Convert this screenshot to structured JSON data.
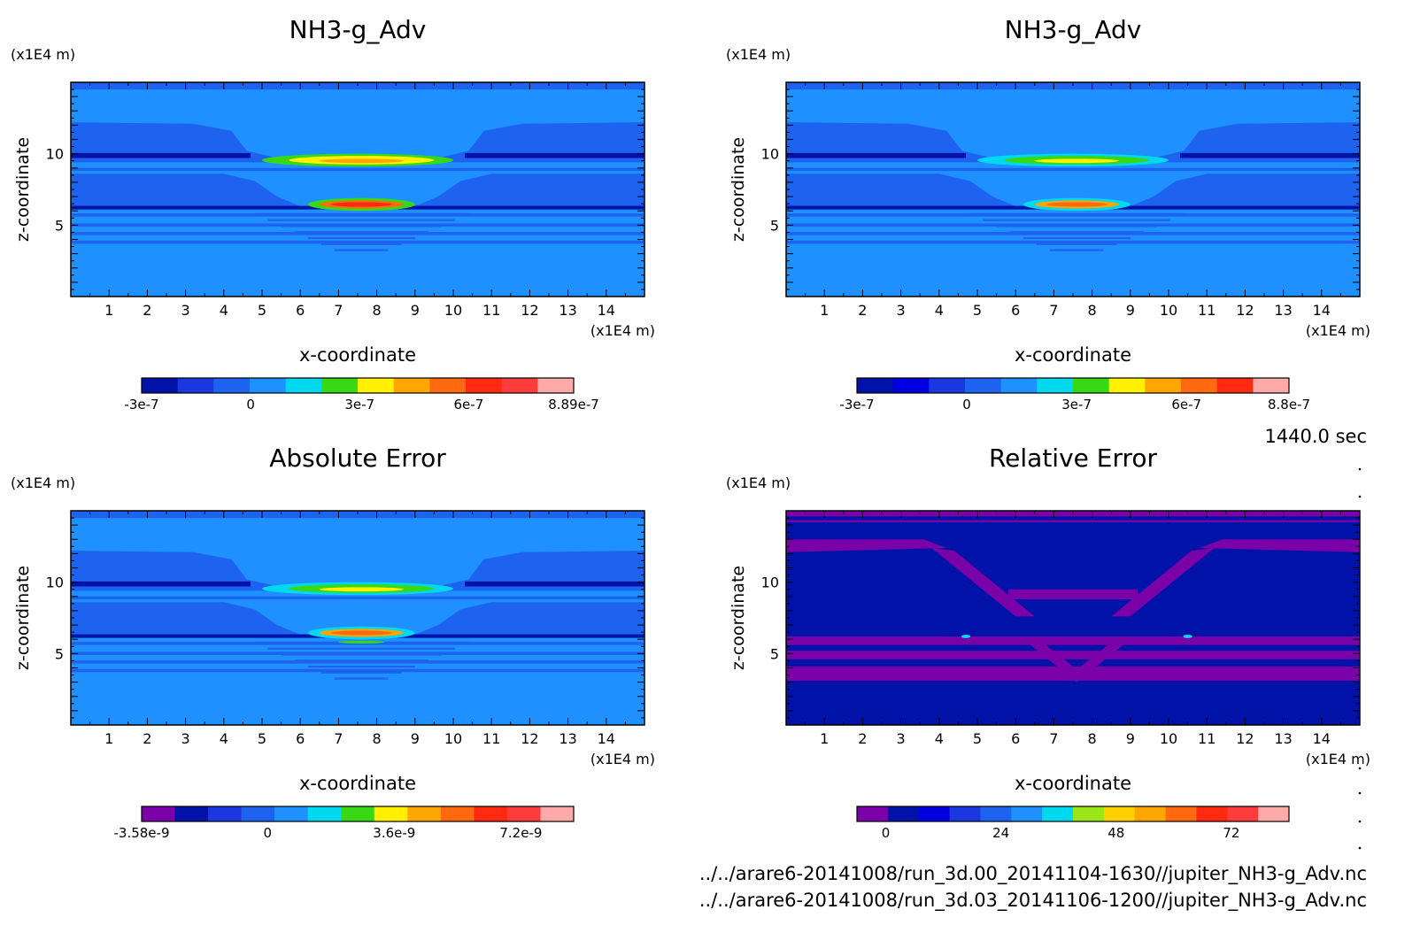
{
  "time_label": "1440.0 sec",
  "files": [
    "../../arare6-20141008/run_3d.00_20141104-1630//jupiter_NH3-g_Adv.nc",
    "../../arare6-20141008/run_3d.03_20141106-1200//jupiter_NH3-g_Adv.nc"
  ],
  "chart_data": [
    {
      "type": "heatmap",
      "title": "NH3-g_Adv",
      "xlabel": "x-coordinate",
      "ylabel": "z-coordinate",
      "x_unit": "(x1E4 m)",
      "y_unit": "(x1E4 m)",
      "xlim": [
        0,
        15
      ],
      "ylim": [
        0,
        15
      ],
      "x_ticks": [
        1,
        2,
        3,
        4,
        5,
        6,
        7,
        8,
        9,
        10,
        11,
        12,
        13,
        14
      ],
      "y_ticks": [
        5,
        10
      ],
      "variant": "field",
      "colorbar": {
        "colors": [
          "#0012a8",
          "#1b38e0",
          "#1e63f0",
          "#1e90ff",
          "#00d8f0",
          "#39d814",
          "#fff000",
          "#ffa500",
          "#ff6a10",
          "#ff2a10",
          "#ff3c3c",
          "#ffaaaa"
        ],
        "range": [
          -3e-07,
          8.89e-07
        ],
        "tick_labels": [
          {
            "label": "-3e-7",
            "value": -3e-07
          },
          {
            "label": "0",
            "value": 0
          },
          {
            "label": "3e-7",
            "value": 3e-07
          },
          {
            "label": "6e-7",
            "value": 6e-07
          },
          {
            "label": "8.89e-7",
            "value": 8.89e-07
          }
        ]
      }
    },
    {
      "type": "heatmap",
      "title": "NH3-g_Adv",
      "xlabel": "x-coordinate",
      "ylabel": "z-coordinate",
      "x_unit": "(x1E4 m)",
      "y_unit": "(x1E4 m)",
      "xlim": [
        0,
        15
      ],
      "ylim": [
        0,
        15
      ],
      "x_ticks": [
        1,
        2,
        3,
        4,
        5,
        6,
        7,
        8,
        9,
        10,
        11,
        12,
        13,
        14
      ],
      "y_ticks": [
        5,
        10
      ],
      "variant": "field",
      "colorbar": {
        "colors": [
          "#0012a8",
          "#0000e0",
          "#1b38e0",
          "#1e63f0",
          "#1e90ff",
          "#00d8f0",
          "#39d814",
          "#fff000",
          "#ffa500",
          "#ff6a10",
          "#ff2a10",
          "#ffaaaa"
        ],
        "range": [
          -3e-07,
          8.8e-07
        ],
        "tick_labels": [
          {
            "label": "-3e-7",
            "value": -3e-07
          },
          {
            "label": "0",
            "value": 0
          },
          {
            "label": "3e-7",
            "value": 3e-07
          },
          {
            "label": "6e-7",
            "value": 6e-07
          },
          {
            "label": "8.8e-7",
            "value": 8.8e-07
          }
        ]
      }
    },
    {
      "type": "heatmap",
      "title": "Absolute Error",
      "xlabel": "x-coordinate",
      "ylabel": "z-coordinate",
      "x_unit": "(x1E4 m)",
      "y_unit": "(x1E4 m)",
      "xlim": [
        0,
        15
      ],
      "ylim": [
        0,
        15
      ],
      "x_ticks": [
        1,
        2,
        3,
        4,
        5,
        6,
        7,
        8,
        9,
        10,
        11,
        12,
        13,
        14
      ],
      "y_ticks": [
        5,
        10
      ],
      "variant": "field",
      "colorbar": {
        "colors": [
          "#7a00a8",
          "#0012a8",
          "#1b38e0",
          "#1e63f0",
          "#1e90ff",
          "#00d8f0",
          "#39d814",
          "#fff000",
          "#ffa500",
          "#ff6a10",
          "#ff2a10",
          "#ff3c3c",
          "#ffaaaa"
        ],
        "range": [
          -3.58e-09,
          8.7e-09
        ],
        "tick_labels": [
          {
            "label": "-3.58e-9",
            "value": -3.58e-09
          },
          {
            "label": "0",
            "value": 0
          },
          {
            "label": "3.6e-9",
            "value": 3.6e-09
          },
          {
            "label": "7.2e-9",
            "value": 7.2e-09
          }
        ]
      }
    },
    {
      "type": "heatmap",
      "title": "Relative Error",
      "xlabel": "x-coordinate",
      "ylabel": "z-coordinate",
      "x_unit": "(x1E4 m)",
      "y_unit": "(x1E4 m)",
      "xlim": [
        0,
        15
      ],
      "ylim": [
        0,
        15
      ],
      "x_ticks": [
        1,
        2,
        3,
        4,
        5,
        6,
        7,
        8,
        9,
        10,
        11,
        12,
        13,
        14
      ],
      "y_ticks": [
        5,
        10
      ],
      "variant": "relerr",
      "colorbar": {
        "colors": [
          "#7a00a8",
          "#0012a8",
          "#0000e0",
          "#1b38e0",
          "#1e63f0",
          "#1e90ff",
          "#00d8f0",
          "#9ae61a",
          "#ffd000",
          "#ffa500",
          "#ff6a10",
          "#ff2a10",
          "#ff3c3c",
          "#ffaaaa"
        ],
        "range": [
          -6,
          84
        ],
        "tick_labels": [
          {
            "label": "0",
            "value": 0
          },
          {
            "label": "24",
            "value": 24
          },
          {
            "label": "48",
            "value": 48
          },
          {
            "label": "72",
            "value": 72
          }
        ]
      }
    }
  ]
}
